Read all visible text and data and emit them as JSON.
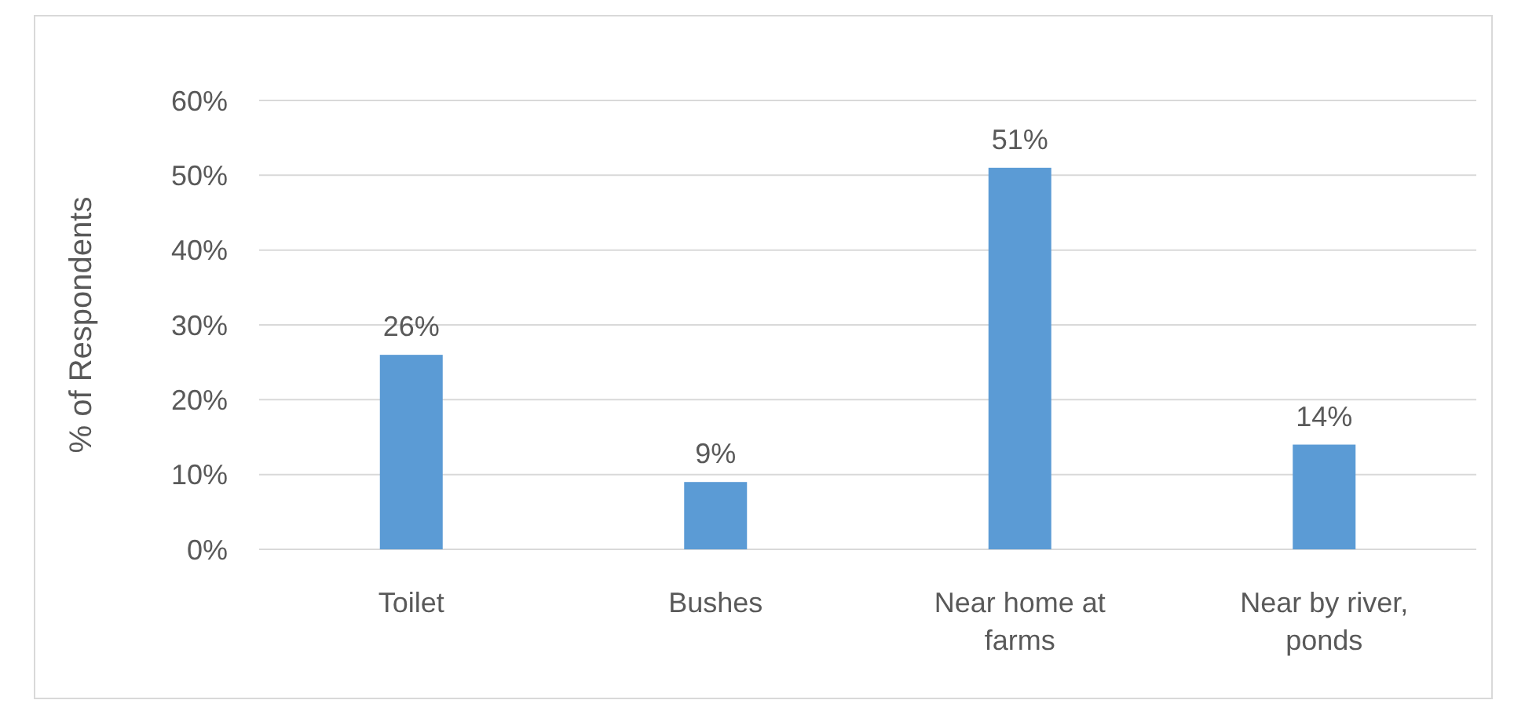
{
  "chart_data": {
    "type": "bar",
    "ylabel": "% of Respondents",
    "categories": [
      "Toilet",
      "Bushes",
      "Near home at farms",
      "Near by river, ponds"
    ],
    "values": [
      26,
      9,
      51,
      14
    ],
    "color": "#5b9bd5",
    "value_labels": [
      "26%",
      "9%",
      "51%",
      "14%"
    ],
    "ylim": [
      0,
      60
    ],
    "yticks": [
      {
        "value": 0,
        "label": "0%"
      },
      {
        "value": 10,
        "label": "10%"
      },
      {
        "value": 20,
        "label": "20%"
      },
      {
        "value": 30,
        "label": "30%"
      },
      {
        "value": 40,
        "label": "40%"
      },
      {
        "value": 50,
        "label": "50%"
      },
      {
        "value": 60,
        "label": "60%"
      }
    ],
    "grid": "y"
  }
}
